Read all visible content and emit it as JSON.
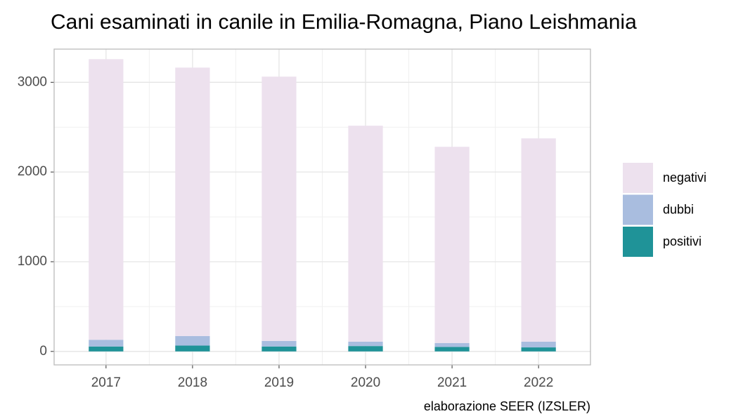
{
  "chart_data": {
    "type": "stacked_bar",
    "title": "Cani esaminati in canile in Emilia-Romagna, Piano Leishmania",
    "caption": "elaborazione SEER (IZSLER)",
    "categories": [
      "2017",
      "2018",
      "2019",
      "2020",
      "2021",
      "2022"
    ],
    "series": [
      {
        "name": "positivi",
        "color": "#1f9398",
        "values": [
          55,
          65,
          55,
          60,
          50,
          45
        ]
      },
      {
        "name": "dubbi",
        "color": "#a9bddf",
        "values": [
          75,
          107,
          62,
          49,
          44,
          64
        ]
      },
      {
        "name": "negativi",
        "color": "#ede1ee",
        "values": [
          3128,
          2992,
          2946,
          2407,
          2187,
          2266
        ]
      }
    ],
    "ylim": [
      -150,
      3370
    ],
    "yticks": [
      0,
      1000,
      2000,
      3000
    ],
    "grid": true,
    "legend": "right"
  }
}
